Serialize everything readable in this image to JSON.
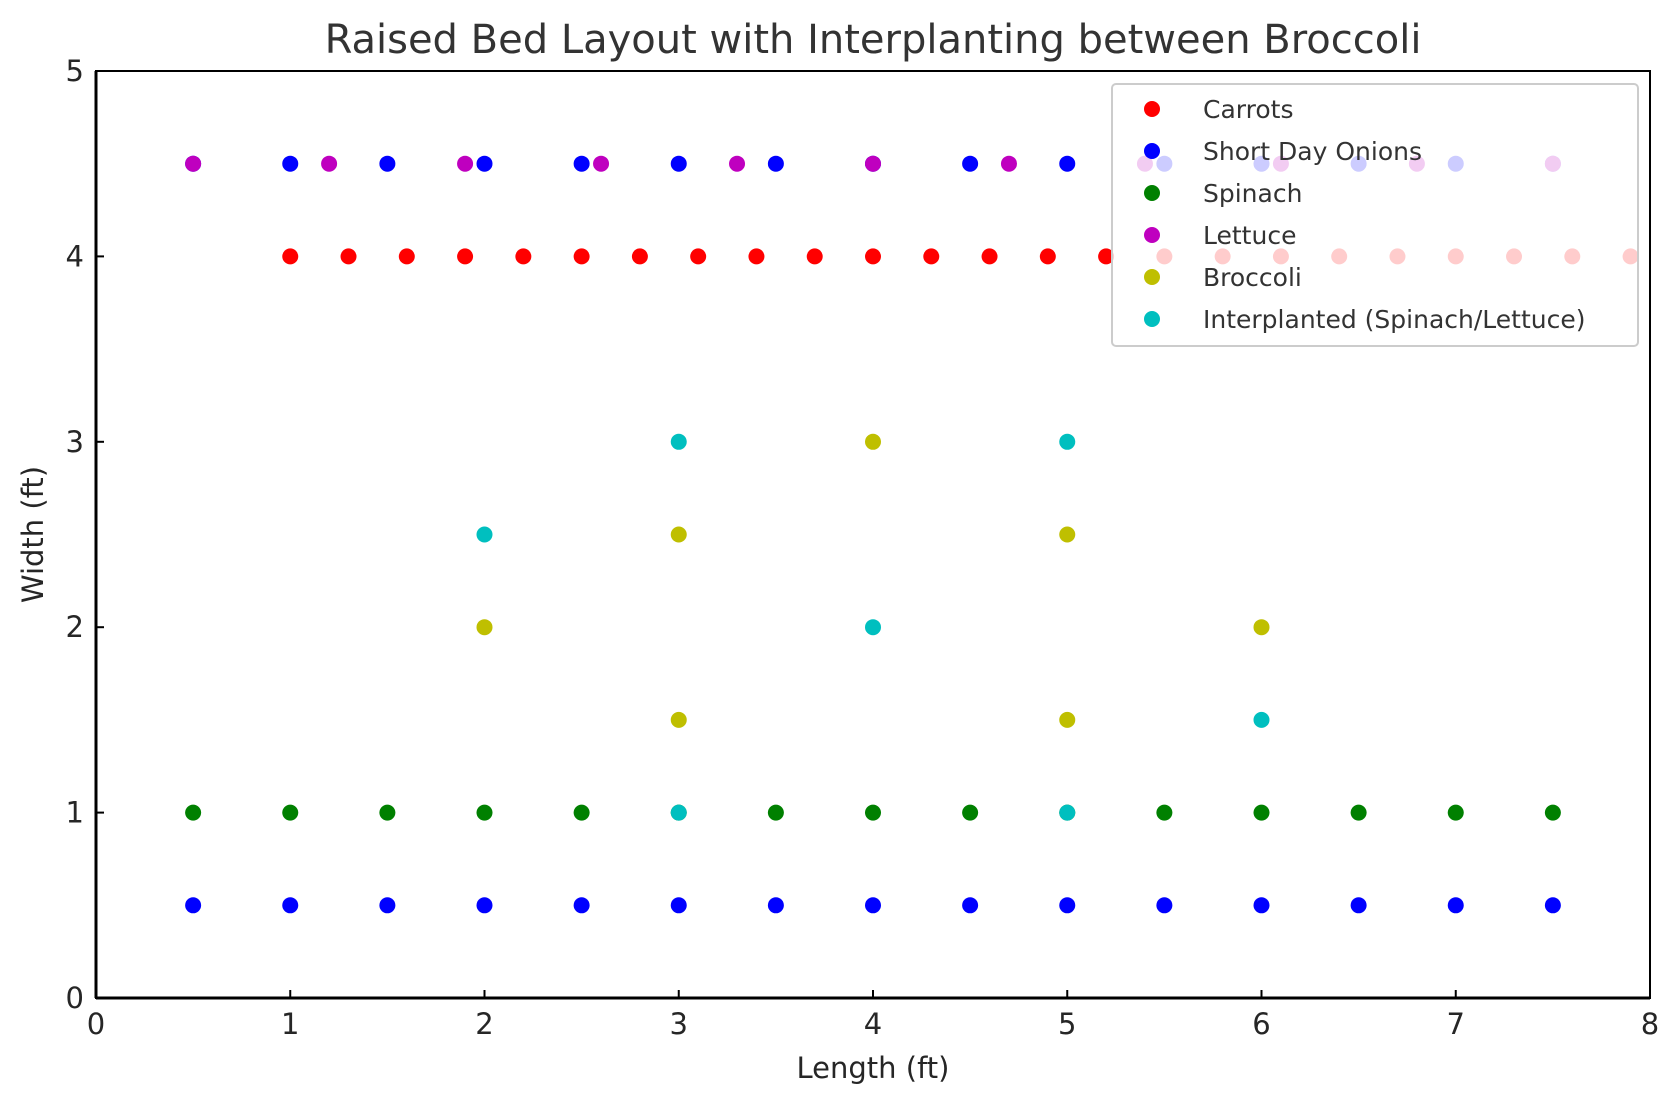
{
  "chart_data": {
    "type": "scatter",
    "title": "Raised Bed Layout with Interplanting between Broccoli",
    "xlabel": "Length (ft)",
    "ylabel": "Width (ft)",
    "xlim": [
      0,
      8
    ],
    "ylim": [
      0,
      5
    ],
    "xticks": [
      "0",
      "1",
      "2",
      "3",
      "4",
      "5",
      "6",
      "7",
      "8"
    ],
    "yticks": [
      "0",
      "1",
      "2",
      "3",
      "4",
      "5"
    ],
    "grid": false,
    "legend_position": "top-right",
    "series": [
      {
        "name": "Carrots",
        "color": "#ff0000",
        "points": [
          [
            1,
            4
          ],
          [
            1.3,
            4
          ],
          [
            1.6,
            4
          ],
          [
            1.9,
            4
          ],
          [
            2.2,
            4
          ],
          [
            2.5,
            4
          ],
          [
            2.8,
            4
          ],
          [
            3.1,
            4
          ],
          [
            3.4,
            4
          ],
          [
            3.7,
            4
          ],
          [
            4.0,
            4
          ],
          [
            4.3,
            4
          ],
          [
            4.6,
            4
          ],
          [
            4.9,
            4
          ],
          [
            5.2,
            4
          ],
          [
            5.5,
            4
          ],
          [
            5.8,
            4
          ],
          [
            6.1,
            4
          ],
          [
            6.4,
            4
          ],
          [
            6.7,
            4
          ],
          [
            7.0,
            4
          ],
          [
            7.3,
            4
          ],
          [
            7.6,
            4
          ],
          [
            7.9,
            4
          ]
        ]
      },
      {
        "name": "Short Day Onions",
        "color": "#0000ff",
        "points": [
          [
            0.5,
            0.5
          ],
          [
            1,
            0.5
          ],
          [
            1.5,
            0.5
          ],
          [
            2,
            0.5
          ],
          [
            2.5,
            0.5
          ],
          [
            3,
            0.5
          ],
          [
            3.5,
            0.5
          ],
          [
            4,
            0.5
          ],
          [
            4.5,
            0.5
          ],
          [
            5,
            0.5
          ],
          [
            5.5,
            0.5
          ],
          [
            6,
            0.5
          ],
          [
            6.5,
            0.5
          ],
          [
            7,
            0.5
          ],
          [
            7.5,
            0.5
          ],
          [
            0.5,
            4.5
          ],
          [
            1,
            4.5
          ],
          [
            1.5,
            4.5
          ],
          [
            2,
            4.5
          ],
          [
            2.5,
            4.5
          ],
          [
            3,
            4.5
          ],
          [
            3.5,
            4.5
          ],
          [
            4,
            4.5
          ],
          [
            4.5,
            4.5
          ],
          [
            5,
            4.5
          ],
          [
            5.5,
            4.5
          ],
          [
            6,
            4.5
          ],
          [
            6.5,
            4.5
          ],
          [
            7,
            4.5
          ],
          [
            7.5,
            4.5
          ]
        ]
      },
      {
        "name": "Spinach",
        "color": "#008000",
        "points": [
          [
            0.5,
            1
          ],
          [
            1,
            1
          ],
          [
            1.5,
            1
          ],
          [
            2,
            1
          ],
          [
            2.5,
            1
          ],
          [
            3,
            1
          ],
          [
            3.5,
            1
          ],
          [
            4,
            1
          ],
          [
            4.5,
            1
          ],
          [
            5,
            1
          ],
          [
            5.5,
            1
          ],
          [
            6,
            1
          ],
          [
            6.5,
            1
          ],
          [
            7,
            1
          ],
          [
            7.5,
            1
          ]
        ]
      },
      {
        "name": "Lettuce",
        "color": "#bf00bf",
        "points": [
          [
            0.5,
            4.5
          ],
          [
            1.2,
            4.5
          ],
          [
            1.9,
            4.5
          ],
          [
            2.6,
            4.5
          ],
          [
            3.3,
            4.5
          ],
          [
            4.0,
            4.5
          ],
          [
            4.7,
            4.5
          ],
          [
            5.4,
            4.5
          ],
          [
            6.1,
            4.5
          ],
          [
            6.8,
            4.5
          ],
          [
            7.5,
            4.5
          ]
        ]
      },
      {
        "name": "Broccoli",
        "color": "#bfbf00",
        "points": [
          [
            2,
            2
          ],
          [
            3,
            1.5
          ],
          [
            3,
            2.5
          ],
          [
            4,
            3
          ],
          [
            5,
            1.5
          ],
          [
            5,
            2.5
          ],
          [
            6,
            2
          ]
        ]
      },
      {
        "name": "Interplanted (Spinach/Lettuce)",
        "color": "#00bfbf",
        "points": [
          [
            2,
            2.5
          ],
          [
            3,
            3
          ],
          [
            3,
            1
          ],
          [
            4,
            2
          ],
          [
            5,
            3
          ],
          [
            5,
            1
          ],
          [
            6,
            1.5
          ]
        ]
      }
    ]
  }
}
